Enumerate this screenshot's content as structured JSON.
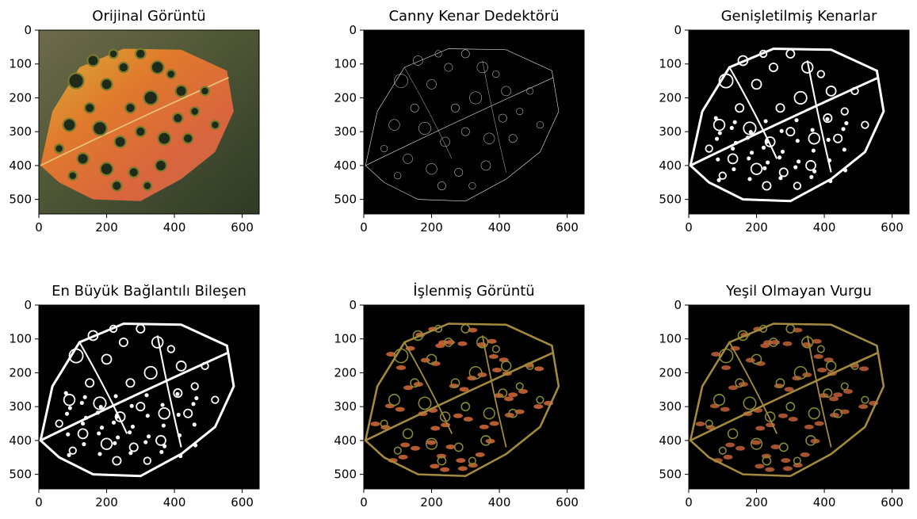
{
  "figure": {
    "panels": [
      {
        "title": "Orijinal Görüntü",
        "image": "original-leaf-photo"
      },
      {
        "title": "Canny Kenar Dedektörü",
        "image": "canny-edge-map"
      },
      {
        "title": "Genişletilmiş Kenarlar",
        "image": "dilated-edge-map"
      },
      {
        "title": "En Büyük Bağlantılı Bileşen",
        "image": "largest-connected-component"
      },
      {
        "title": "İşlenmiş Görüntü",
        "image": "processed-leaf"
      },
      {
        "title": "Yeşil Olmayan Vurgu",
        "image": "non-green-highlight"
      }
    ]
  },
  "chart_data": [
    {
      "type": "image",
      "title": "Orijinal Görüntü",
      "xticks": [
        0,
        200,
        400,
        600
      ],
      "yticks": [
        0,
        100,
        200,
        300,
        400,
        500
      ],
      "xlim": [
        0,
        650
      ],
      "ylim": [
        543,
        0
      ]
    },
    {
      "type": "image",
      "title": "Canny Kenar Dedektörü",
      "xticks": [
        0,
        200,
        400,
        600
      ],
      "yticks": [
        0,
        100,
        200,
        300,
        400,
        500
      ],
      "xlim": [
        0,
        650
      ],
      "ylim": [
        543,
        0
      ]
    },
    {
      "type": "image",
      "title": "Genişletilmiş Kenarlar",
      "xticks": [
        0,
        200,
        400,
        600
      ],
      "yticks": [
        0,
        100,
        200,
        300,
        400,
        500
      ],
      "xlim": [
        0,
        650
      ],
      "ylim": [
        543,
        0
      ]
    },
    {
      "type": "image",
      "title": "En Büyük Bağlantılı Bileşen",
      "xticks": [
        0,
        200,
        400,
        600
      ],
      "yticks": [
        0,
        100,
        200,
        300,
        400,
        500
      ],
      "xlim": [
        0,
        650
      ],
      "ylim": [
        543,
        0
      ]
    },
    {
      "type": "image",
      "title": "İşlenmiş Görüntü",
      "xticks": [
        0,
        200,
        400,
        600
      ],
      "yticks": [
        0,
        100,
        200,
        300,
        400,
        500
      ],
      "xlim": [
        0,
        650
      ],
      "ylim": [
        543,
        0
      ]
    },
    {
      "type": "image",
      "title": "Yeşil Olmayan Vurgu",
      "xticks": [
        0,
        200,
        400,
        600
      ],
      "yticks": [
        0,
        100,
        200,
        300,
        400,
        500
      ],
      "xlim": [
        0,
        650
      ],
      "ylim": [
        543,
        0
      ]
    }
  ]
}
